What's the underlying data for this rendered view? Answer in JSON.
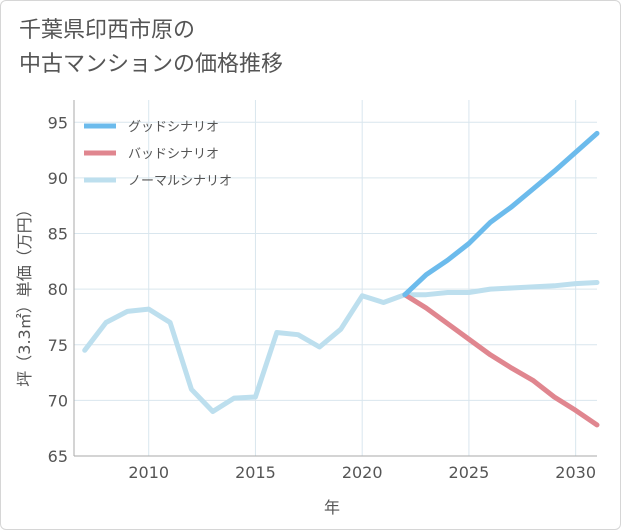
{
  "title": {
    "line1": "千葉県印西市原の",
    "line2": "中古マンションの価格推移"
  },
  "colors": {
    "good": "#6cbbec",
    "bad": "#e0868f",
    "normal": "#bddfee",
    "grid": "#d9e6ee",
    "axis": "#aaaaaa",
    "text": "#555555"
  },
  "chart_data": {
    "type": "line",
    "title": "千葉県印西市原の中古マンションの価格推移",
    "xlabel": "年",
    "ylabel": "坪（3.3㎡）単価（万円）",
    "xlim": [
      2006.5,
      2031
    ],
    "ylim": [
      65,
      97
    ],
    "xticks": [
      2010,
      2015,
      2020,
      2025,
      2030
    ],
    "yticks": [
      65,
      70,
      75,
      80,
      85,
      90,
      95
    ],
    "grid": true,
    "legend_position": "top-left",
    "series": [
      {
        "key": "good",
        "name": "グッドシナリオ",
        "x": [
          2022,
          2023,
          2024,
          2025,
          2026,
          2027,
          2028,
          2029,
          2030,
          2031
        ],
        "y": [
          79.5,
          81.3,
          82.6,
          84.1,
          86.0,
          87.4,
          89.0,
          90.6,
          92.3,
          94.0
        ]
      },
      {
        "key": "bad",
        "name": "バッドシナリオ",
        "x": [
          2022,
          2023,
          2024,
          2025,
          2026,
          2027,
          2028,
          2029,
          2030,
          2031
        ],
        "y": [
          79.5,
          78.3,
          76.9,
          75.5,
          74.1,
          72.9,
          71.8,
          70.3,
          69.1,
          67.8
        ]
      },
      {
        "key": "normal",
        "name": "ノーマルシナリオ",
        "x": [
          2007,
          2008,
          2009,
          2010,
          2011,
          2012,
          2013,
          2014,
          2015,
          2016,
          2017,
          2018,
          2019,
          2020,
          2021,
          2022,
          2023,
          2024,
          2025,
          2026,
          2027,
          2028,
          2029,
          2030,
          2031
        ],
        "y": [
          74.5,
          77.0,
          78.0,
          78.2,
          77.0,
          71.0,
          69.0,
          70.2,
          70.3,
          76.1,
          75.9,
          74.8,
          76.4,
          79.4,
          78.8,
          79.5,
          79.5,
          79.7,
          79.7,
          80.0,
          80.1,
          80.2,
          80.3,
          80.5,
          80.6
        ]
      }
    ]
  }
}
